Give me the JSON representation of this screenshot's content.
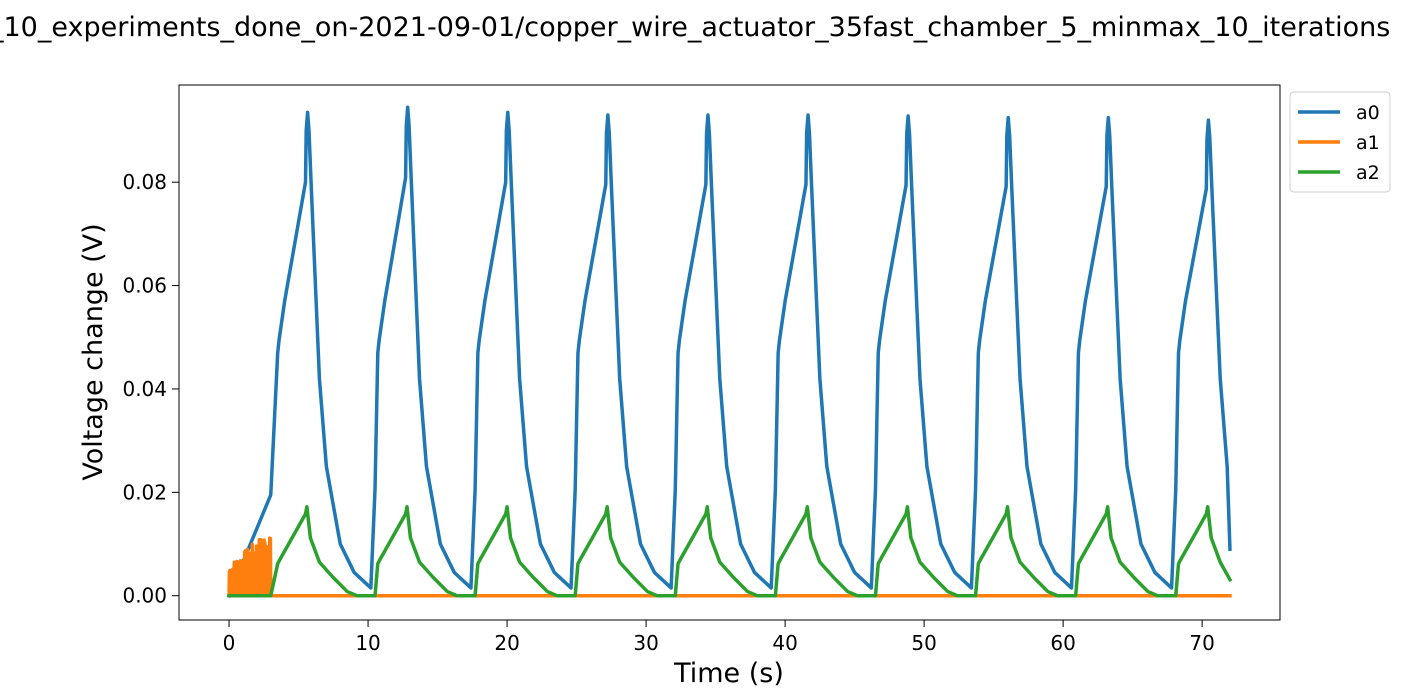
{
  "chart_data": {
    "type": "line",
    "title": "_10_experiments_done_on-2021-09-01/copper_wire_actuator_35fast_chamber_5_minmax_10_iterations",
    "xlabel": "Time (s)",
    "ylabel": "Voltage change (V)",
    "xlim": [
      -3.6,
      75.6
    ],
    "ylim": [
      -0.0047,
      0.0988
    ],
    "xticks": [
      0,
      10,
      20,
      30,
      40,
      50,
      60,
      70
    ],
    "xtick_labels": [
      "0",
      "10",
      "20",
      "30",
      "40",
      "50",
      "60",
      "70"
    ],
    "yticks": [
      0.0,
      0.02,
      0.04,
      0.06,
      0.08
    ],
    "ytick_labels": [
      "0.00",
      "0.02",
      "0.04",
      "0.06",
      "0.08"
    ],
    "grid": false,
    "legend_position": "outside-top-right",
    "cycle_period_s": 7.2,
    "cycles": 10,
    "series": [
      {
        "name": "a0",
        "color": "#1f77b4",
        "cycle_points": [
          [
            0,
            0.0
          ],
          [
            3.0,
            0.0195
          ],
          [
            3.5,
            0.047
          ],
          [
            3.6,
            0.0495
          ],
          [
            4.0,
            0.057
          ],
          [
            5.5,
            0.08
          ],
          [
            5.55,
            0.09
          ],
          [
            5.65,
            0.0935
          ],
          [
            5.75,
            0.09
          ],
          [
            5.9,
            0.08
          ],
          [
            6.5,
            0.042
          ],
          [
            7.0,
            0.025
          ],
          [
            8.0,
            0.01
          ],
          [
            9.0,
            0.0045
          ],
          [
            10.2,
            0.0015
          ],
          [
            10.5,
            0.0205
          ]
        ],
        "peaks": [
          0.0935,
          0.0945,
          0.0935,
          0.093,
          0.093,
          0.093,
          0.0928,
          0.0925,
          0.0925,
          0.092
        ],
        "end": [
          72.0,
          0.009
        ]
      },
      {
        "name": "a1",
        "color": "#ff7f0e",
        "x_range": [
          0.0,
          72.0
        ],
        "value": 0.0,
        "noise_burst": {
          "x_range": [
            0.0,
            3.0
          ],
          "max": 0.0132
        }
      },
      {
        "name": "a2",
        "color": "#2ca02c",
        "cycle_points": [
          [
            0,
            0.0
          ],
          [
            3.0,
            0.0
          ],
          [
            3.5,
            0.0062
          ],
          [
            3.7,
            0.0072
          ],
          [
            5.5,
            0.0158
          ],
          [
            5.6,
            0.0172
          ],
          [
            5.85,
            0.0112
          ],
          [
            6.5,
            0.0065
          ],
          [
            7.5,
            0.0035
          ],
          [
            8.5,
            0.0008
          ],
          [
            9.2,
            0.0
          ],
          [
            10.2,
            0.0
          ],
          [
            10.5,
            0.0
          ]
        ],
        "peaks": [
          0.0169,
          0.0173,
          0.0172,
          0.0171,
          0.0172,
          0.0173,
          0.0172,
          0.0171,
          0.0171,
          0.0169
        ],
        "end": [
          72.0,
          0.0031
        ]
      }
    ]
  }
}
